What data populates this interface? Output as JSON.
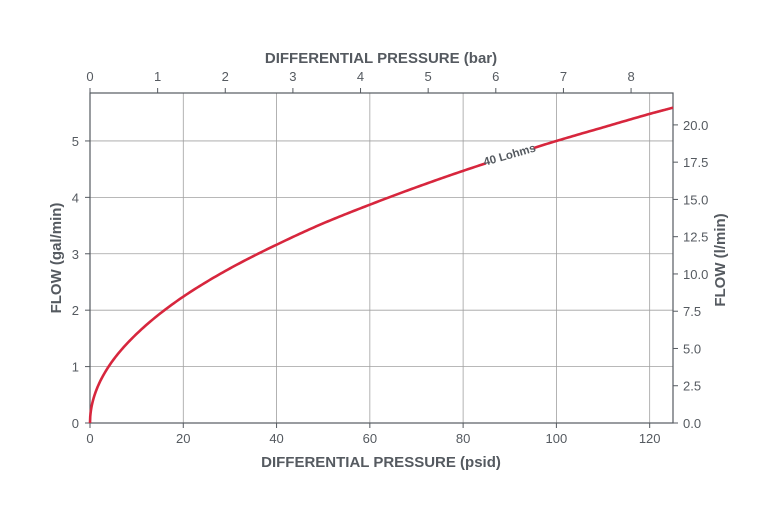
{
  "chart_data": {
    "type": "line",
    "title": "",
    "xlabel": "DIFFERENTIAL PRESSURE (psid)",
    "x2label": "DIFFERENTIAL PRESSURE (bar)",
    "ylabel": "FLOW (gal/min)",
    "y2label": "FLOW (l/min)",
    "xlim": [
      0,
      125
    ],
    "ylim": [
      0,
      5.85
    ],
    "x2lim": [
      0,
      8.62
    ],
    "y2lim": [
      0,
      22.14
    ],
    "x_ticks": [
      "0",
      "20",
      "40",
      "60",
      "80",
      "100",
      "120"
    ],
    "x2_ticks": [
      "0",
      "1",
      "2",
      "3",
      "4",
      "5",
      "6",
      "7",
      "8"
    ],
    "y_ticks": [
      "0",
      "1",
      "2",
      "3",
      "4",
      "5"
    ],
    "y2_ticks": [
      "0.0",
      "2.5",
      "5.0",
      "7.5",
      "10.0",
      "12.5",
      "15.0",
      "17.5",
      "20.0"
    ],
    "grid": true,
    "series": [
      {
        "name": "40 Lohms",
        "color": "#d7263d",
        "x": [
          0,
          1,
          5,
          10,
          20,
          30,
          40,
          50,
          60,
          70,
          80,
          90,
          100,
          110,
          120,
          125
        ],
        "y": [
          0,
          0.5,
          1.12,
          1.58,
          2.24,
          2.74,
          3.16,
          3.54,
          3.87,
          4.18,
          4.47,
          4.74,
          5.0,
          5.24,
          5.48,
          5.59
        ]
      }
    ]
  }
}
